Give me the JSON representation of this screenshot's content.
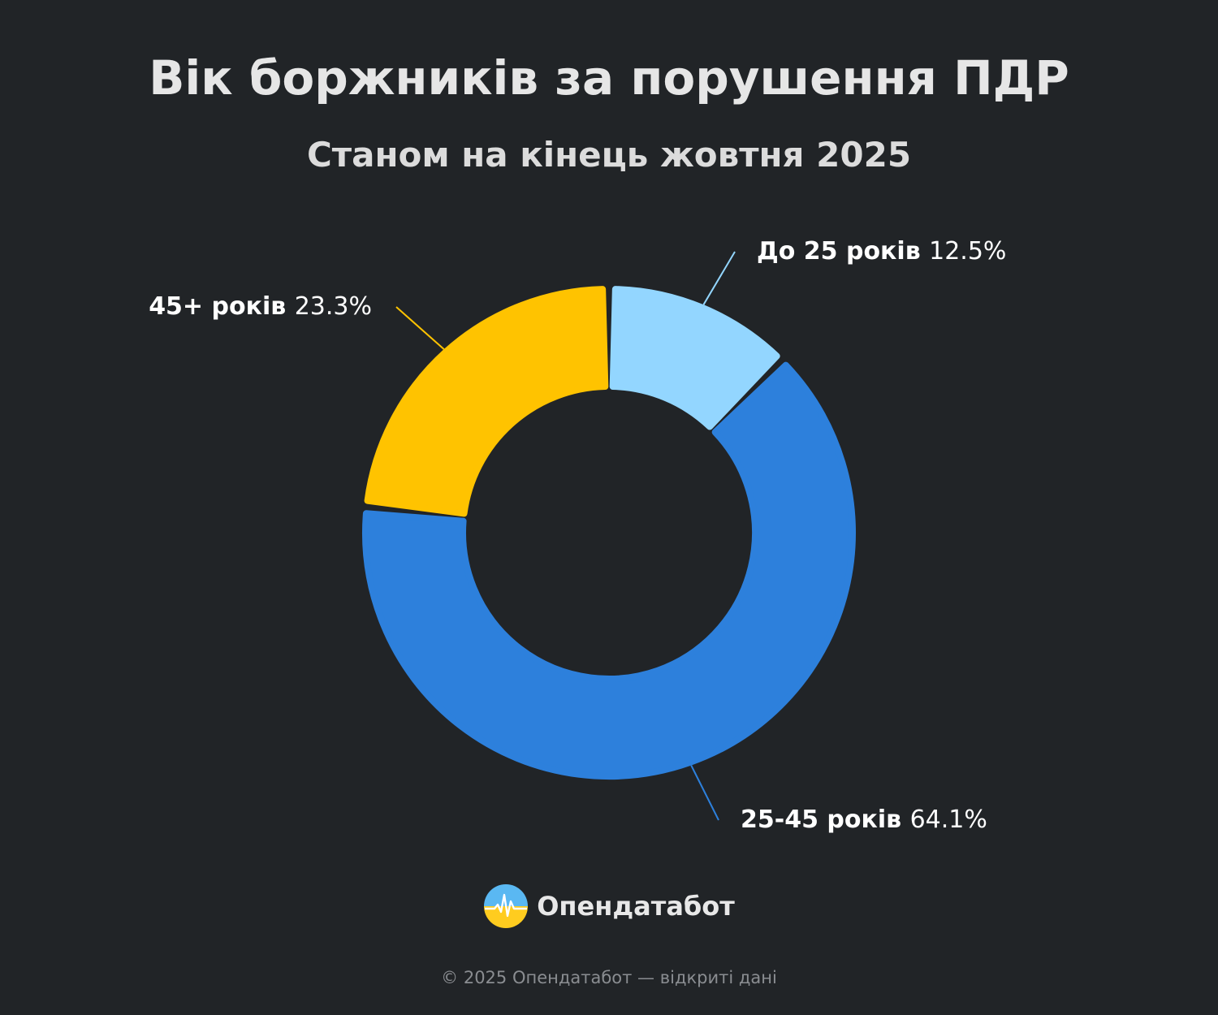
{
  "header": {
    "title": "Вік боржників за порушення ПДР",
    "subtitle": "Станом на кінець жовтня 2025"
  },
  "chart_data": {
    "type": "pie",
    "donut": true,
    "title": "Вік боржників за порушення ПДР",
    "subtitle": "Станом на кінець жовтня 2025",
    "slices": [
      {
        "label": "До 25 років",
        "value": 12.5,
        "value_label": "12.5%",
        "color": "#93d6ff"
      },
      {
        "label": "25-45 років",
        "value": 64.1,
        "value_label": "64.1%",
        "color": "#2d80dc"
      },
      {
        "label": "45+ років",
        "value": 23.3,
        "value_label": "23.3%",
        "color": "#ffc300"
      }
    ]
  },
  "brand": {
    "name": "Опендатабот",
    "logo_icon": "opendatabot-logo-icon"
  },
  "footer": {
    "text": "© 2025 Опендатабот — відкриті дані"
  },
  "colors": {
    "background": "#212427",
    "title": "#e6e6e6",
    "label_text": "#ffffff",
    "footer_text": "#8a8d91"
  }
}
